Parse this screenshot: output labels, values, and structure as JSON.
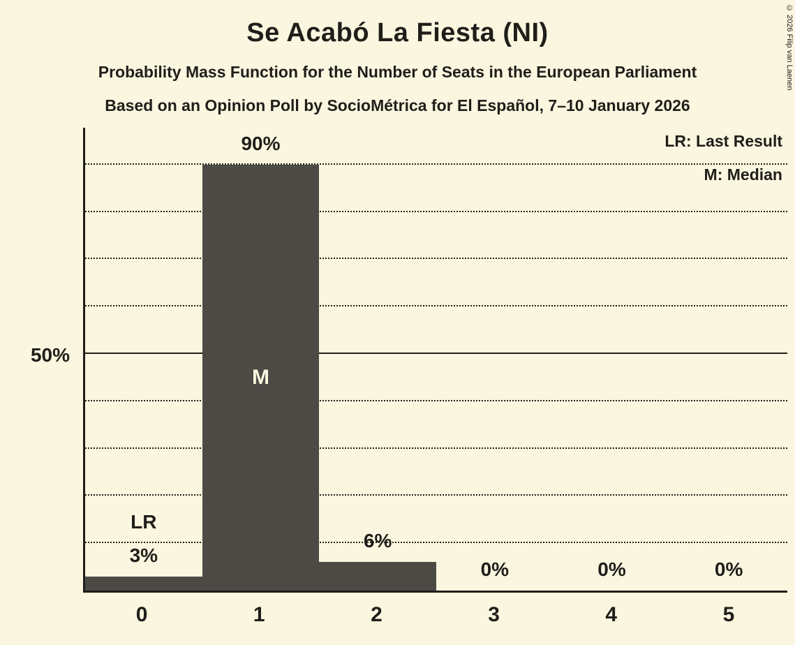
{
  "header": {
    "title": "Se Acabó La Fiesta (NI)",
    "subtitle1": "Probability Mass Function for the Number of Seats in the European Parliament",
    "subtitle2": "Based on an Opinion Poll by SocioMétrica for El Español, 7–10 January 2026"
  },
  "legend": {
    "lr": "LR: Last Result",
    "m": "M: Median"
  },
  "copyright": "© 2026 Filip van Laenen",
  "chart_data": {
    "type": "bar",
    "title": "Se Acabó La Fiesta (NI)",
    "xlabel": "",
    "ylabel": "",
    "categories": [
      "0",
      "1",
      "2",
      "3",
      "4",
      "5"
    ],
    "values": [
      3,
      90,
      6,
      0,
      0,
      0
    ],
    "value_labels": [
      "3%",
      "90%",
      "6%",
      "0%",
      "0%",
      "0%"
    ],
    "annotations": [
      {
        "index": 0,
        "label": "LR",
        "position": "above"
      },
      {
        "index": 1,
        "label": "M",
        "position": "inside"
      }
    ],
    "y_ticks": [
      {
        "value": 50,
        "label": "50%"
      }
    ],
    "ylim": [
      0,
      100
    ],
    "gridlines": {
      "dotted": [
        10,
        20,
        30,
        40,
        60,
        70,
        80,
        90
      ],
      "solid": [
        50
      ]
    },
    "legend_position": "top-right",
    "grid": true,
    "colors": {
      "background": "#FBF6DF",
      "bar": "#4B4A45",
      "text": "#1F1E1A",
      "bar_inner_label": "#FBF6DF"
    }
  }
}
